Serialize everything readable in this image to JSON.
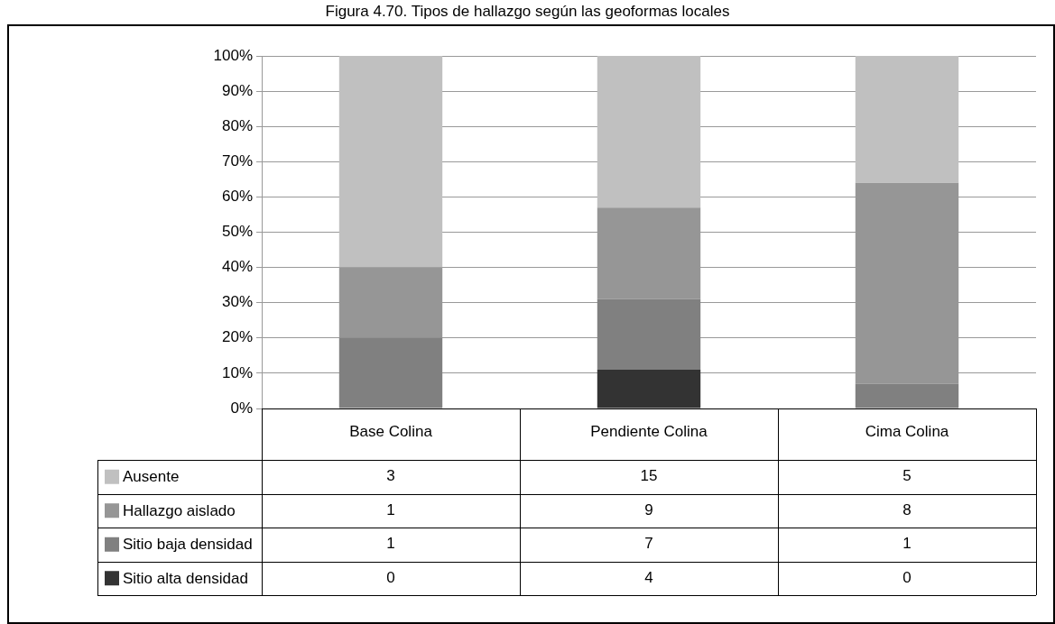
{
  "chart_data": {
    "type": "bar",
    "title": "Figura 4.70. Tipos de hallazgo según las geoformas locales",
    "categories": [
      "Base Colina",
      "Pendiente Colina",
      "Cima Colina"
    ],
    "stacked": true,
    "ylim": [
      0,
      100
    ],
    "yticks": [
      {
        "value": 0,
        "label": "0%"
      },
      {
        "value": 10,
        "label": "10%"
      },
      {
        "value": 20,
        "label": "20%"
      },
      {
        "value": 30,
        "label": "30%"
      },
      {
        "value": 40,
        "label": "40%"
      },
      {
        "value": 50,
        "label": "50%"
      },
      {
        "value": 60,
        "label": "60%"
      },
      {
        "value": 70,
        "label": "70%"
      },
      {
        "value": 80,
        "label": "80%"
      },
      {
        "value": 90,
        "label": "90%"
      },
      {
        "value": 100,
        "label": "100%"
      }
    ],
    "grid": "y",
    "legend": "bottom",
    "annotations": [
      "3",
      "15",
      "5",
      "1",
      "9",
      "8",
      "1",
      "7",
      "1",
      "0",
      "4",
      "0"
    ],
    "series": [
      {
        "name": "Sitio alta densidad",
        "color": "#333333",
        "values": [
          0,
          11,
          0
        ]
      },
      {
        "name": "Sitio baja densidad",
        "color": "#808080",
        "values": [
          20,
          20,
          7
        ]
      },
      {
        "name": "Hallazgo aislado",
        "color": "#969696",
        "values": [
          20,
          26,
          57
        ]
      },
      {
        "name": "Ausente",
        "color": "#c0c0c0",
        "values": [
          60,
          43,
          36
        ]
      }
    ]
  }
}
